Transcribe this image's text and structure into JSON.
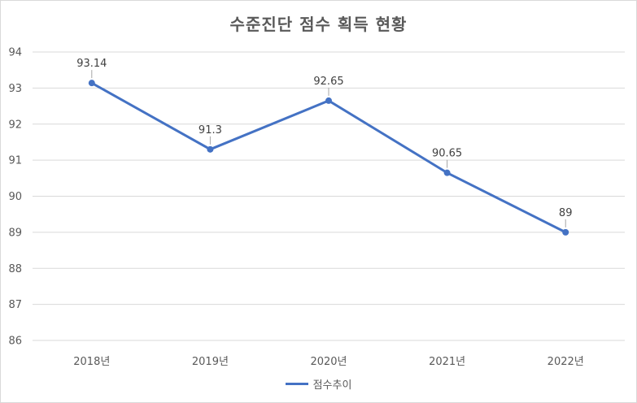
{
  "chart_data": {
    "type": "line",
    "title": "수준진단 점수 획득 현황",
    "categories": [
      "2018년",
      "2019년",
      "2020년",
      "2021년",
      "2022년"
    ],
    "series": [
      {
        "name": "점수추이",
        "values": [
          93.14,
          91.3,
          92.65,
          90.65,
          89
        ],
        "labels": [
          "93.14",
          "91.3",
          "92.65",
          "90.65",
          "89"
        ]
      }
    ],
    "ylim": [
      86,
      94
    ],
    "yticks": [
      "86",
      "87",
      "88",
      "89",
      "90",
      "91",
      "92",
      "93",
      "94"
    ],
    "grid": true,
    "legend": "bottom",
    "colors": {
      "series": "#4472c4",
      "grid": "#d9d9d9",
      "text": "#595959"
    }
  }
}
